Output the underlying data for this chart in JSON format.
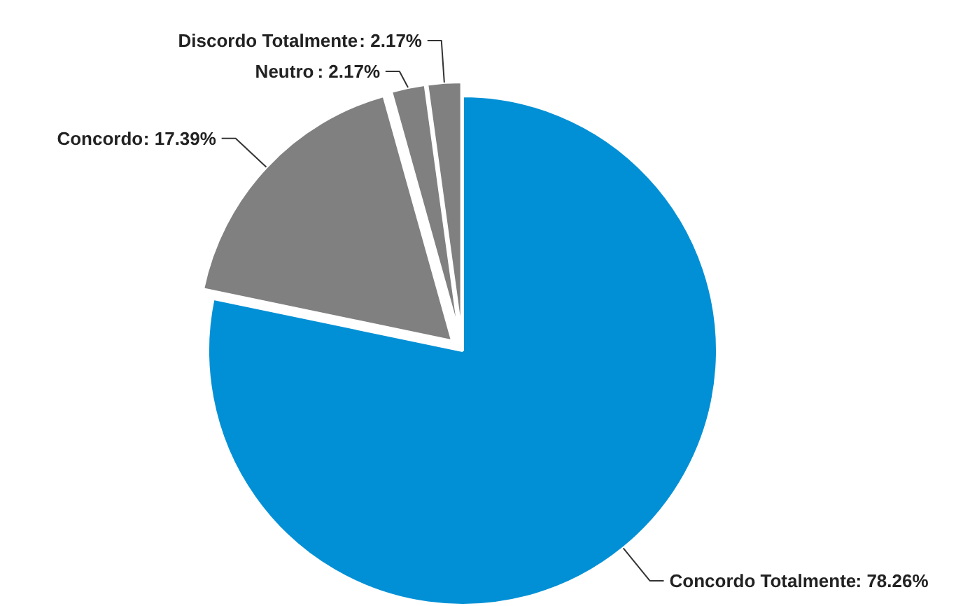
{
  "chart_data": {
    "type": "pie",
    "categories": [
      "Concordo Totalmente",
      "Concordo",
      "Neutro",
      "Discordo Totalmente"
    ],
    "values": [
      78.26,
      17.39,
      2.17,
      2.17
    ],
    "colors": [
      "#0190d6",
      "#808080",
      "#808080",
      "#808080"
    ],
    "value_labels": [
      ": 78.26%",
      ": 17.39%",
      ": 2.17%",
      ": 2.17%"
    ]
  }
}
